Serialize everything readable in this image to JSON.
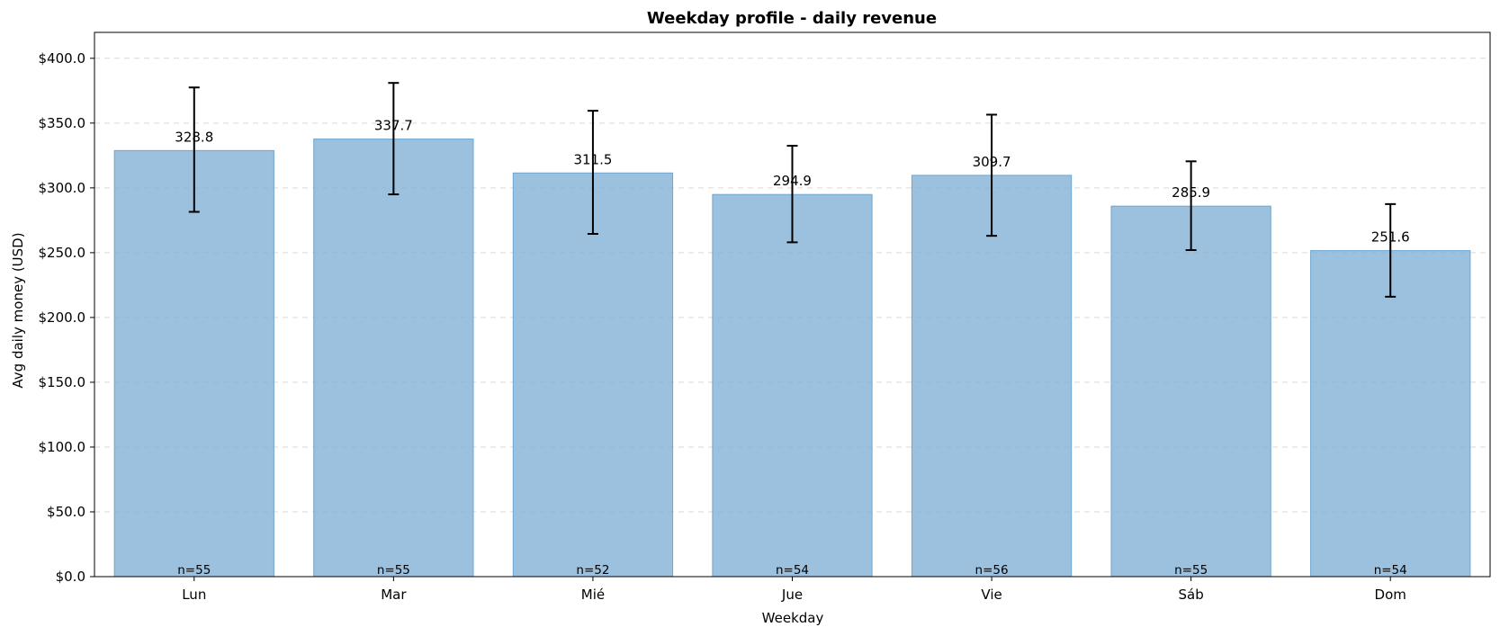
{
  "chart_data": {
    "type": "bar",
    "title": "Weekday profile - daily revenue",
    "xlabel": "Weekday",
    "ylabel": "Avg daily money (USD)",
    "ylim": [
      0,
      420
    ],
    "yticks": [
      0,
      50,
      100,
      150,
      200,
      250,
      300,
      350,
      400
    ],
    "ytick_labels": [
      "$0.0",
      "$50.0",
      "$100.0",
      "$150.0",
      "$200.0",
      "$250.0",
      "$300.0",
      "$350.0",
      "$400.0"
    ],
    "categories": [
      "Lun",
      "Mar",
      "Mié",
      "Jue",
      "Vie",
      "Sáb",
      "Dom"
    ],
    "values": [
      328.8,
      337.7,
      311.5,
      294.9,
      309.7,
      285.9,
      251.6
    ],
    "value_labels": [
      "328.8",
      "337.7",
      "311.5",
      "294.9",
      "309.7",
      "285.9",
      "251.6"
    ],
    "error_low": [
      281.5,
      295.0,
      264.5,
      258.0,
      263.0,
      252.0,
      216.0
    ],
    "error_high": [
      377.5,
      381.0,
      359.5,
      332.5,
      356.5,
      320.5,
      287.5
    ],
    "counts": [
      "n=55",
      "n=55",
      "n=52",
      "n=54",
      "n=56",
      "n=55",
      "n=54"
    ],
    "grid": "y-dashed",
    "colors": {
      "bar": "#7fb0d6",
      "bar_edge": "#6ea6d0",
      "errorbar": "#000000",
      "grid": "#d9d9d9"
    }
  }
}
